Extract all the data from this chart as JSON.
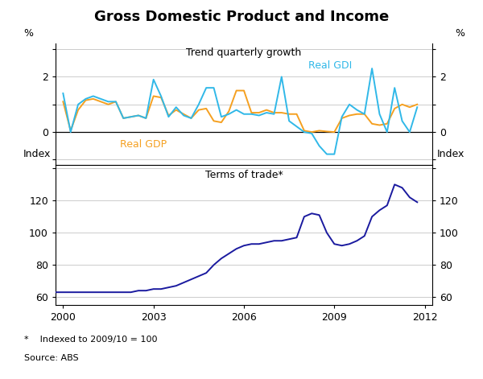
{
  "title": "Gross Domestic Product and Income",
  "title_fontsize": 13,
  "footnote": "*    Indexed to 2009/10 = 100",
  "source": "Source: ABS",
  "top_panel": {
    "subtitle": "Trend quarterly growth",
    "ylabel_left": "%",
    "ylabel_right": "%",
    "ylim": [
      -1.2,
      3.2
    ],
    "yticks": [
      -1,
      0,
      1,
      2,
      3
    ],
    "ytick_labels": [
      "",
      "0",
      "",
      "2",
      ""
    ],
    "label_gdp": "Real GDP",
    "label_gdi": "Real GDI",
    "color_gdp": "#F5A020",
    "color_gdi": "#30B8E8",
    "gdp_x": [
      2000.0,
      2000.25,
      2000.5,
      2000.75,
      2001.0,
      2001.25,
      2001.5,
      2001.75,
      2002.0,
      2002.25,
      2002.5,
      2002.75,
      2003.0,
      2003.25,
      2003.5,
      2003.75,
      2004.0,
      2004.25,
      2004.5,
      2004.75,
      2005.0,
      2005.25,
      2005.5,
      2005.75,
      2006.0,
      2006.25,
      2006.5,
      2006.75,
      2007.0,
      2007.25,
      2007.5,
      2007.75,
      2008.0,
      2008.25,
      2008.5,
      2008.75,
      2009.0,
      2009.25,
      2009.5,
      2009.75,
      2010.0,
      2010.25,
      2010.5,
      2010.75,
      2011.0,
      2011.25,
      2011.5,
      2011.75
    ],
    "gdp_y": [
      1.1,
      0.05,
      0.8,
      1.15,
      1.2,
      1.1,
      1.0,
      1.1,
      0.5,
      0.55,
      0.6,
      0.5,
      1.3,
      1.25,
      0.6,
      0.8,
      0.65,
      0.5,
      0.8,
      0.85,
      0.4,
      0.35,
      0.75,
      1.5,
      1.5,
      0.7,
      0.7,
      0.8,
      0.7,
      0.7,
      0.65,
      0.65,
      0.05,
      0.0,
      0.05,
      0.02,
      0.0,
      0.5,
      0.6,
      0.65,
      0.65,
      0.3,
      0.25,
      0.3,
      0.85,
      1.0,
      0.9,
      1.0
    ],
    "gdi_x": [
      2000.0,
      2000.25,
      2000.5,
      2000.75,
      2001.0,
      2001.25,
      2001.5,
      2001.75,
      2002.0,
      2002.25,
      2002.5,
      2002.75,
      2003.0,
      2003.25,
      2003.5,
      2003.75,
      2004.0,
      2004.25,
      2004.5,
      2004.75,
      2005.0,
      2005.25,
      2005.5,
      2005.75,
      2006.0,
      2006.25,
      2006.5,
      2006.75,
      2007.0,
      2007.25,
      2007.5,
      2007.75,
      2008.0,
      2008.25,
      2008.5,
      2008.75,
      2009.0,
      2009.25,
      2009.5,
      2009.75,
      2010.0,
      2010.25,
      2010.5,
      2010.75,
      2011.0,
      2011.25,
      2011.5,
      2011.75
    ],
    "gdi_y": [
      1.4,
      0.0,
      1.0,
      1.2,
      1.3,
      1.2,
      1.1,
      1.1,
      0.5,
      0.55,
      0.6,
      0.5,
      1.9,
      1.3,
      0.55,
      0.9,
      0.6,
      0.5,
      1.0,
      1.6,
      1.6,
      0.55,
      0.65,
      0.8,
      0.65,
      0.65,
      0.6,
      0.7,
      0.65,
      2.0,
      0.4,
      0.2,
      0.0,
      -0.05,
      -0.5,
      -0.8,
      -0.8,
      0.55,
      1.0,
      0.8,
      0.65,
      2.3,
      0.65,
      0.0,
      1.6,
      0.4,
      0.0,
      0.9
    ]
  },
  "bottom_panel": {
    "subtitle": "Terms of trade*",
    "ylabel_left": "Index",
    "ylabel_right": "Index",
    "ylim": [
      55,
      142
    ],
    "yticks": [
      60,
      80,
      100,
      120,
      140
    ],
    "ytick_labels": [
      "60",
      "80",
      "100",
      "120",
      ""
    ],
    "color": "#1A1A9F",
    "tot_x": [
      1999.75,
      2000.0,
      2000.25,
      2000.5,
      2000.75,
      2001.0,
      2001.25,
      2001.5,
      2001.75,
      2002.0,
      2002.25,
      2002.5,
      2002.75,
      2003.0,
      2003.25,
      2003.5,
      2003.75,
      2004.0,
      2004.25,
      2004.5,
      2004.75,
      2005.0,
      2005.25,
      2005.5,
      2005.75,
      2006.0,
      2006.25,
      2006.5,
      2006.75,
      2007.0,
      2007.25,
      2007.5,
      2007.75,
      2008.0,
      2008.25,
      2008.5,
      2008.75,
      2009.0,
      2009.25,
      2009.5,
      2009.75,
      2010.0,
      2010.25,
      2010.5,
      2010.75,
      2011.0,
      2011.25,
      2011.5,
      2011.75
    ],
    "tot_y": [
      63,
      63,
      63,
      63,
      63,
      63,
      63,
      63,
      63,
      63,
      63,
      64,
      64,
      65,
      65,
      66,
      67,
      69,
      71,
      73,
      75,
      80,
      84,
      87,
      90,
      92,
      93,
      93,
      94,
      95,
      95,
      96,
      97,
      110,
      112,
      111,
      100,
      93,
      92,
      93,
      95,
      98,
      110,
      114,
      117,
      130,
      128,
      122,
      119
    ]
  },
  "xlim": [
    1999.75,
    2012.25
  ],
  "xticks": [
    2000,
    2003,
    2006,
    2009,
    2012
  ],
  "xtick_labels": [
    "2000",
    "2003",
    "2006",
    "2009",
    "2012"
  ],
  "grid_color": "#CCCCCC",
  "bg_color": "#FFFFFF",
  "axis_color": "#000000"
}
